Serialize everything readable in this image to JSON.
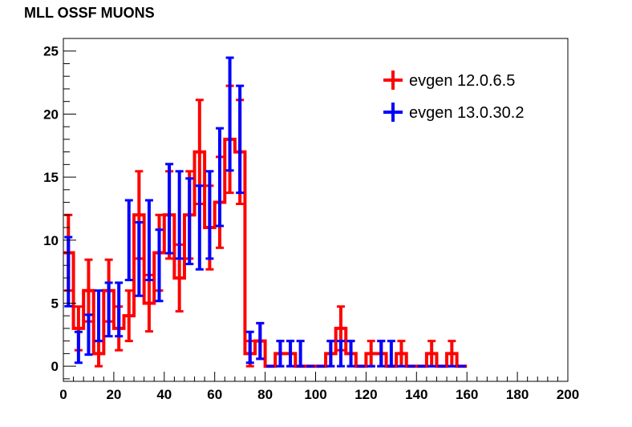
{
  "chart_data": {
    "type": "histogram",
    "title": "MLL OSSF MUONS",
    "xlim": [
      0,
      200
    ],
    "ylim": [
      -1.2,
      26
    ],
    "x_ticks": [
      0,
      20,
      40,
      60,
      80,
      100,
      120,
      140,
      160,
      180,
      200
    ],
    "y_ticks": [
      0,
      5,
      10,
      15,
      20,
      25
    ],
    "bin_width": 4,
    "legend_position": "top-right",
    "series": [
      {
        "name": "evgen 12.0.6.5",
        "color": "#ff0000",
        "values": [
          9,
          3,
          6,
          1,
          6,
          3,
          4,
          12,
          5,
          9,
          12,
          7,
          12,
          17,
          11,
          13,
          18,
          17,
          1,
          2,
          0,
          1,
          1,
          0,
          0,
          0,
          1,
          3,
          1,
          0,
          1,
          1,
          0,
          1,
          0,
          0,
          1,
          0,
          1,
          0
        ]
      },
      {
        "name": "evgen 13.0.30.2",
        "color": "#0000ff",
        "values": [
          7.5,
          1.5,
          2.5,
          4,
          4.5,
          4.5,
          10,
          8.5,
          10,
          8,
          12.5,
          12,
          11.5,
          11,
          12,
          15,
          20,
          18,
          1.5,
          2,
          0,
          1,
          1,
          1,
          0,
          0,
          1,
          1,
          1,
          0,
          0,
          1,
          1,
          0,
          0,
          0,
          0,
          0,
          0,
          0
        ]
      }
    ]
  }
}
